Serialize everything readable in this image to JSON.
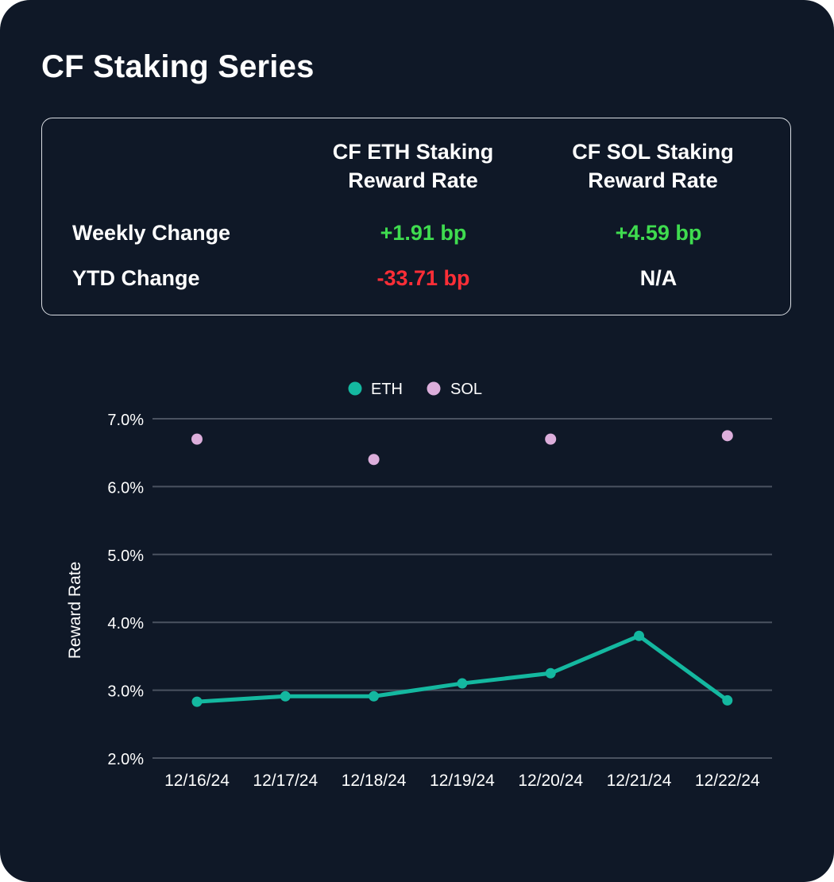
{
  "title": "CF Staking Series",
  "table": {
    "columns": [
      "CF ETH Staking\nReward Rate",
      "CF SOL Staking\nReward Rate"
    ],
    "column_lines": [
      [
        "CF ETH Staking",
        "Reward Rate"
      ],
      [
        "CF SOL Staking",
        "Reward Rate"
      ]
    ],
    "rows": [
      {
        "label": "Weekly Change",
        "values": [
          "+1.91 bp",
          "+4.59 bp"
        ],
        "tones": [
          "pos",
          "pos"
        ]
      },
      {
        "label": "YTD Change",
        "values": [
          "-33.71 bp",
          "N/A"
        ],
        "tones": [
          "neg",
          "neu"
        ]
      }
    ]
  },
  "colors": {
    "background": "#0f1827",
    "eth": "#14b8a0",
    "sol": "#dcaedb",
    "grid": "#4a5260",
    "positive": "#3fdc4f",
    "negative": "#ff2e37"
  },
  "chart_data": {
    "type": "line",
    "title": "",
    "xlabel": "",
    "ylabel": "Reward Rate",
    "categories": [
      "12/16/24",
      "12/17/24",
      "12/18/24",
      "12/19/24",
      "12/20/24",
      "12/21/24",
      "12/22/24"
    ],
    "ylim": [
      2.0,
      7.0
    ],
    "yticks": [
      2.0,
      3.0,
      4.0,
      5.0,
      6.0,
      7.0
    ],
    "ytick_labels": [
      "2.0%",
      "3.0%",
      "4.0%",
      "5.0%",
      "6.0%",
      "7.0%"
    ],
    "legend": {
      "position": "top-center",
      "entries": [
        "ETH",
        "SOL"
      ]
    },
    "grid": true,
    "series": [
      {
        "name": "ETH",
        "style": "line-markers",
        "values": [
          2.83,
          2.91,
          2.91,
          3.1,
          3.25,
          3.8,
          2.85
        ]
      },
      {
        "name": "SOL",
        "style": "markers",
        "values": [
          6.7,
          null,
          6.4,
          null,
          6.7,
          null,
          6.75
        ]
      }
    ]
  }
}
